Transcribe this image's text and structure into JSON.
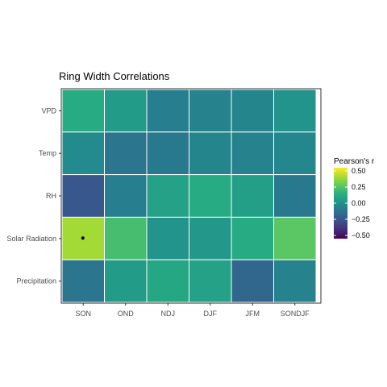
{
  "chart_data": {
    "type": "heatmap",
    "title": "Ring Width Correlations",
    "xlabel": "",
    "ylabel": "",
    "x_categories": [
      "SON",
      "OND",
      "NDJ",
      "DJF",
      "JFM",
      "SONDJF"
    ],
    "y_categories": [
      "VPD",
      "Temp",
      "RH",
      "Solar Radiation",
      "Precipitation"
    ],
    "values": [
      [
        0.13,
        0.05,
        -0.08,
        -0.06,
        -0.05,
        0.02
      ],
      [
        -0.02,
        -0.12,
        -0.1,
        -0.05,
        -0.06,
        -0.04
      ],
      [
        -0.25,
        -0.08,
        0.08,
        0.13,
        0.07,
        -0.1
      ],
      [
        0.4,
        0.22,
        0.02,
        0.04,
        0.13,
        0.27
      ],
      [
        -0.12,
        0.05,
        0.11,
        0.08,
        -0.18,
        -0.06
      ]
    ],
    "significant": [
      {
        "x": "SON",
        "y": "Solar Radiation",
        "marker": "•"
      }
    ],
    "legend": {
      "title": "Pearson's r",
      "ticks": [
        0.5,
        0.25,
        0.0,
        -0.25,
        -0.5
      ],
      "tick_labels": [
        "0.50",
        "0.25",
        "0.00",
        "−0.25",
        "−0.50"
      ],
      "range": [
        -0.55,
        0.55
      ],
      "position": "right"
    },
    "colormap": "viridis",
    "grid": false
  }
}
